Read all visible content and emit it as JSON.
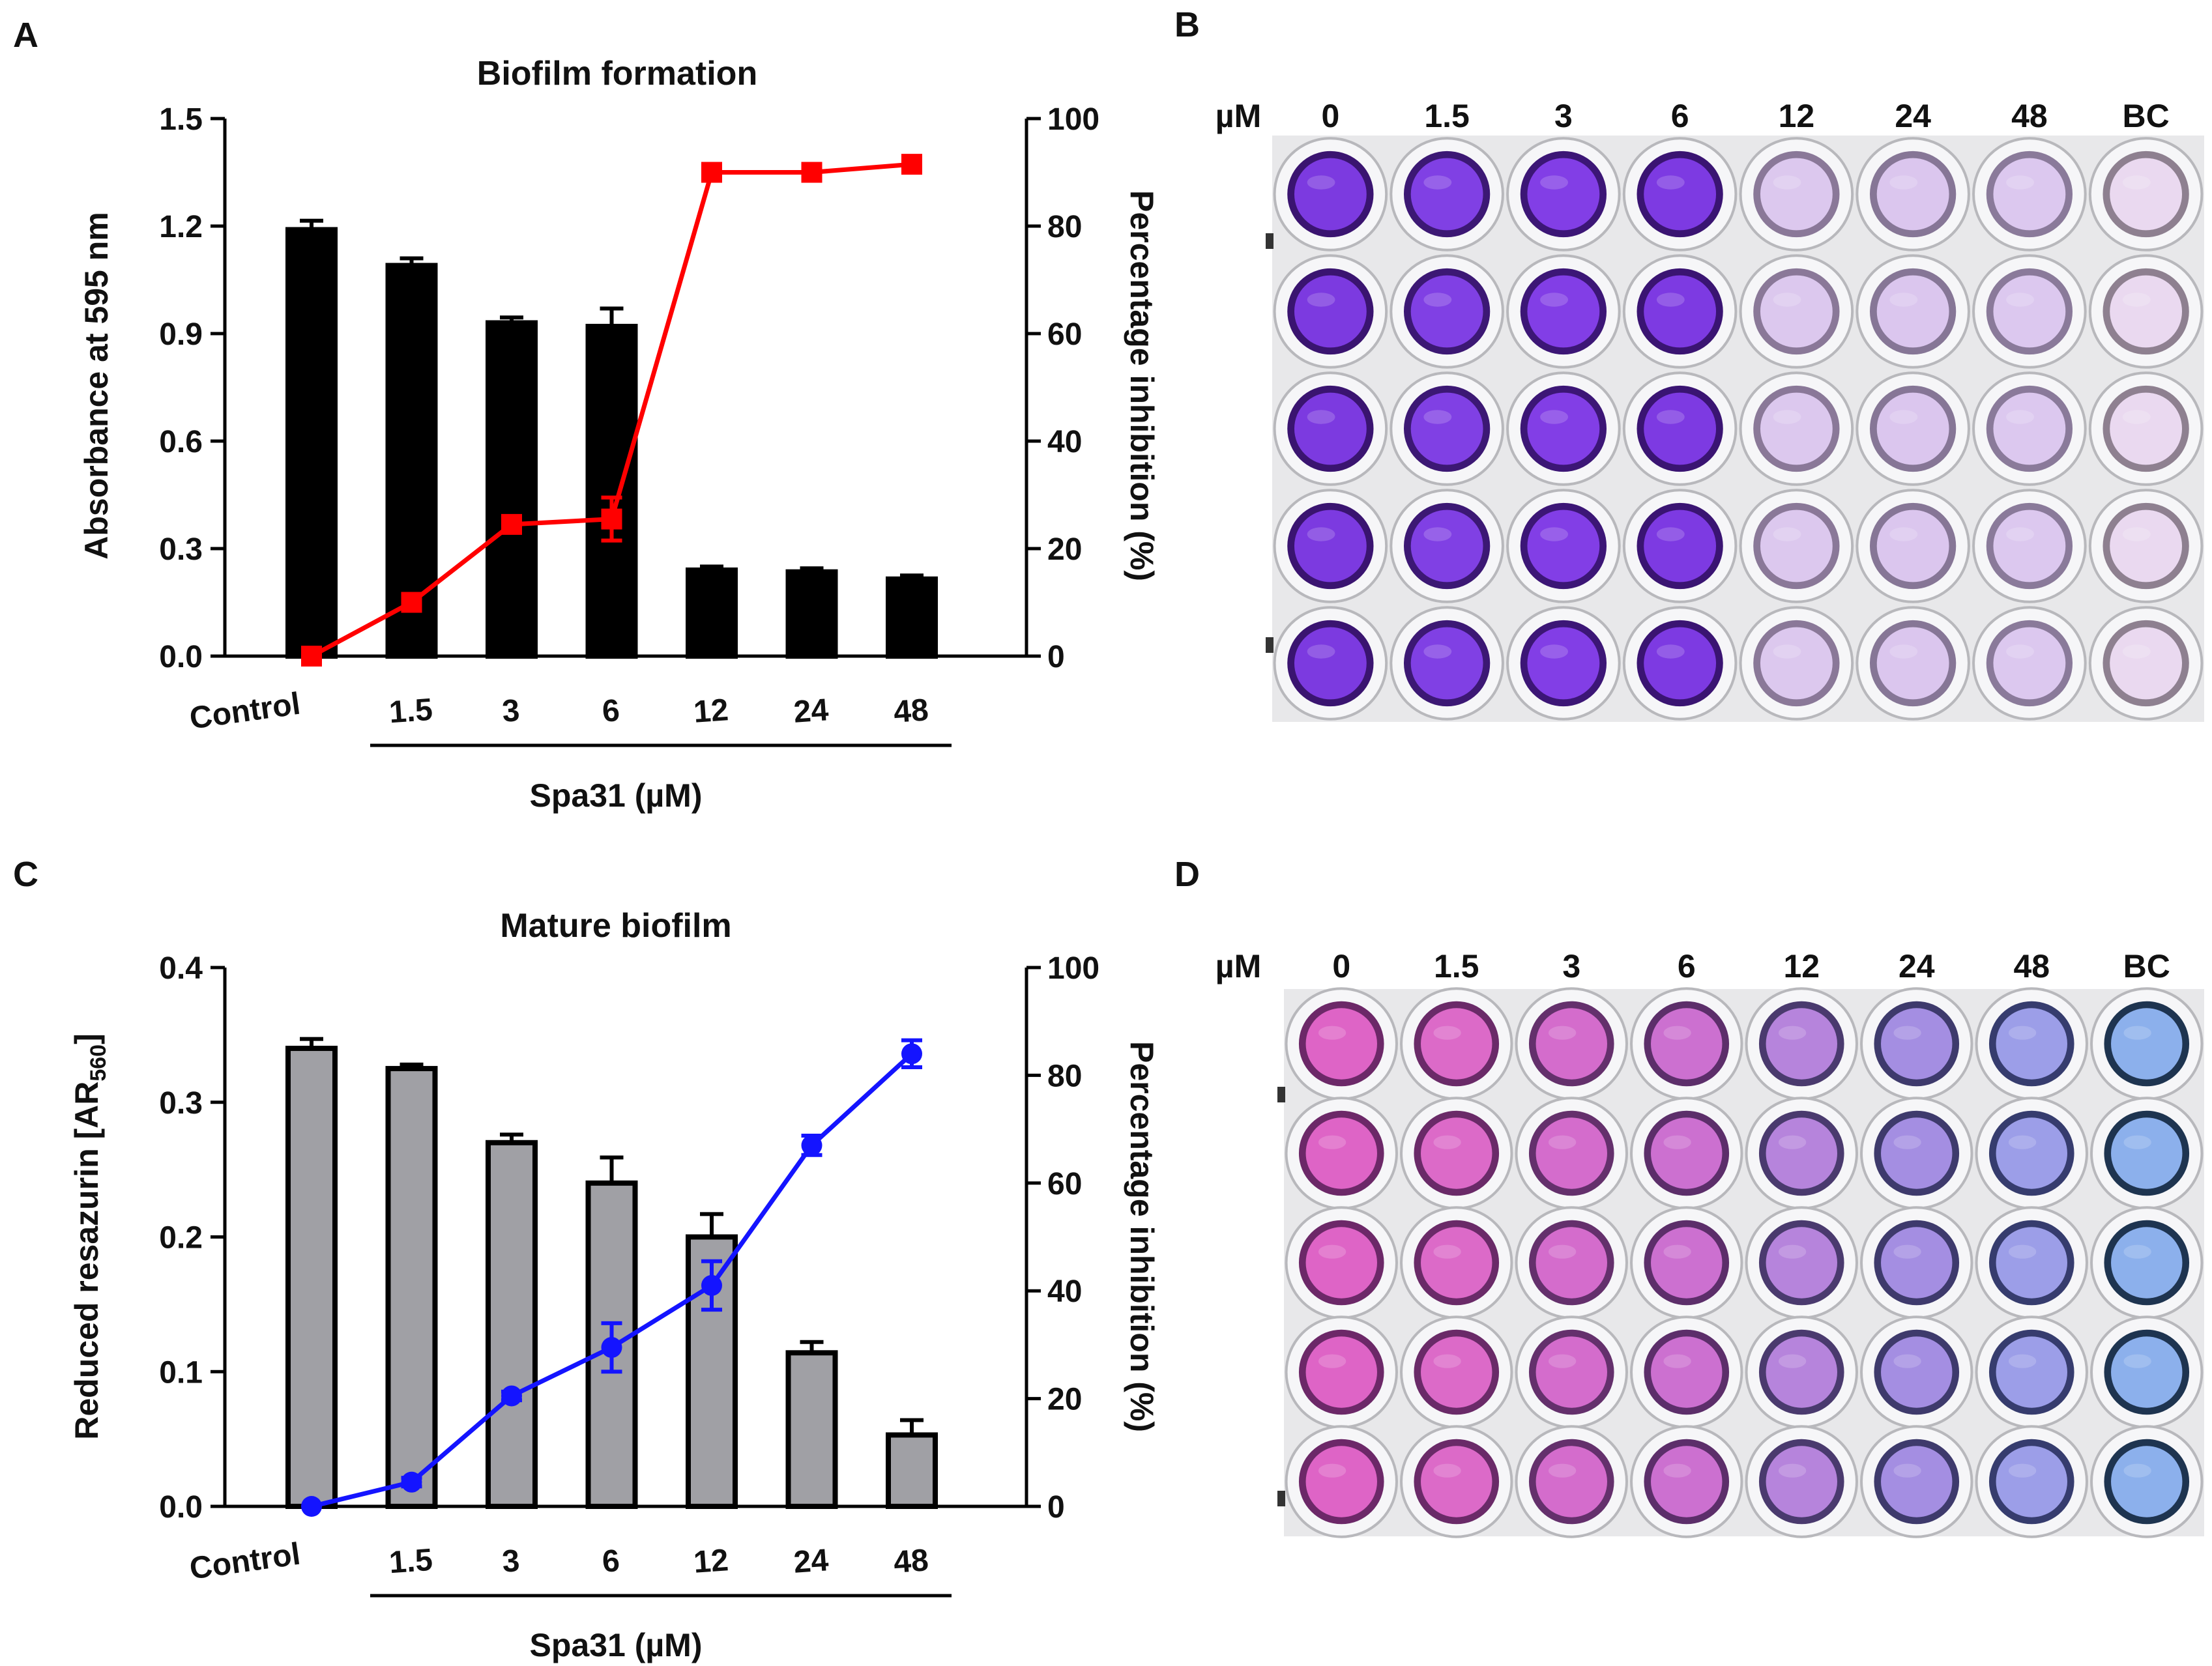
{
  "panel_letters": {
    "a": "A",
    "b": "B",
    "c": "C",
    "d": "D"
  },
  "chart_data": [
    {
      "type": "bar",
      "panel": "A",
      "title": "Biofilm formation",
      "categories": [
        "Control",
        "1.5",
        "3",
        "6",
        "12",
        "24",
        "48"
      ],
      "group_label": "Spa31 (µM)",
      "ylabel": "Absorbance at 595 nm",
      "y2label": "Percentage inhibition (%)",
      "ylim": [
        0,
        1.5
      ],
      "yticks": [
        "0.0",
        "0.3",
        "0.6",
        "0.9",
        "1.2",
        "1.5"
      ],
      "y2lim": [
        0,
        100
      ],
      "y2ticks": [
        "0",
        "20",
        "40",
        "60",
        "80",
        "100"
      ],
      "bar_color": "#000000",
      "line_color": "#ff0000",
      "line_marker": "square",
      "series": [
        {
          "name": "Absorbance",
          "axis": "left",
          "kind": "bar",
          "values": [
            1.19,
            1.09,
            0.93,
            0.92,
            0.24,
            0.235,
            0.215
          ],
          "errors": [
            0.025,
            0.02,
            0.015,
            0.05,
            0.01,
            0.01,
            0.01
          ]
        },
        {
          "name": "Percentage inhibition",
          "axis": "right",
          "kind": "line",
          "values": [
            0,
            10,
            24.5,
            25.5,
            90,
            90,
            91.5
          ],
          "errors": [
            0,
            0.8,
            0.8,
            4,
            0.8,
            0.8,
            0.8
          ]
        }
      ]
    },
    {
      "type": "bar",
      "panel": "C",
      "title": "Mature biofilm",
      "categories": [
        "Control",
        "1.5",
        "3",
        "6",
        "12",
        "24",
        "48"
      ],
      "group_label": "Spa31 (µM)",
      "ylabel": "Reduced resazurin [AR",
      "ylabel_sub": "560",
      "ylabel_end": "]",
      "y2label": "Percentage inhibition (%)",
      "ylim": [
        0,
        0.4
      ],
      "yticks": [
        "0.0",
        "0.1",
        "0.2",
        "0.3",
        "0.4"
      ],
      "y2lim": [
        0,
        100
      ],
      "y2ticks": [
        "0",
        "20",
        "40",
        "60",
        "80",
        "100"
      ],
      "bar_color": "#a0a0a5",
      "line_color": "#1414ff",
      "line_marker": "circle",
      "series": [
        {
          "name": "Reduced resazurin",
          "axis": "left",
          "kind": "bar",
          "values": [
            0.34,
            0.325,
            0.27,
            0.24,
            0.2,
            0.114,
            0.053
          ],
          "errors": [
            0.007,
            0.003,
            0.006,
            0.019,
            0.017,
            0.008,
            0.011
          ]
        },
        {
          "name": "Percentage inhibition",
          "axis": "right",
          "kind": "line",
          "values": [
            0,
            4.5,
            20.5,
            29.5,
            41,
            67,
            84
          ],
          "errors": [
            0,
            0.8,
            0.8,
            4.5,
            4.5,
            1.8,
            2.5
          ]
        }
      ]
    }
  ],
  "plates": [
    {
      "panel": "B",
      "unit_label": "µM",
      "columns": [
        "0",
        "1.5",
        "3",
        "6",
        "12",
        "24",
        "48",
        "BC"
      ],
      "row_count": 5,
      "well_colors": [
        "#7c3ae0",
        "#8040e4",
        "#823ee6",
        "#7d3ae2",
        "#dcc8ee",
        "#dbc6ee",
        "#dcc8ef",
        "#ead9f0"
      ],
      "well_rim_colors": [
        "#3a1470",
        "#3c1874",
        "#3c1676",
        "#3a1472",
        "#8a7898",
        "#867696",
        "#8a7a9a",
        "#8e8090"
      ]
    },
    {
      "panel": "D",
      "unit_label": "µM",
      "columns": [
        "0",
        "1.5",
        "3",
        "6",
        "12",
        "24",
        "48",
        "BC"
      ],
      "row_count": 5,
      "well_colors": [
        "#de64c6",
        "#dc6ac8",
        "#d46ccc",
        "#cc70d0",
        "#b684dc",
        "#a48ee2",
        "#9c9ee8",
        "#8cb0ec"
      ],
      "well_rim_colors": [
        "#6c2868",
        "#6a2a68",
        "#64306c",
        "#5c2e6a",
        "#4a3a6e",
        "#3e3a6c",
        "#363c6e",
        "#1e3450"
      ]
    }
  ]
}
